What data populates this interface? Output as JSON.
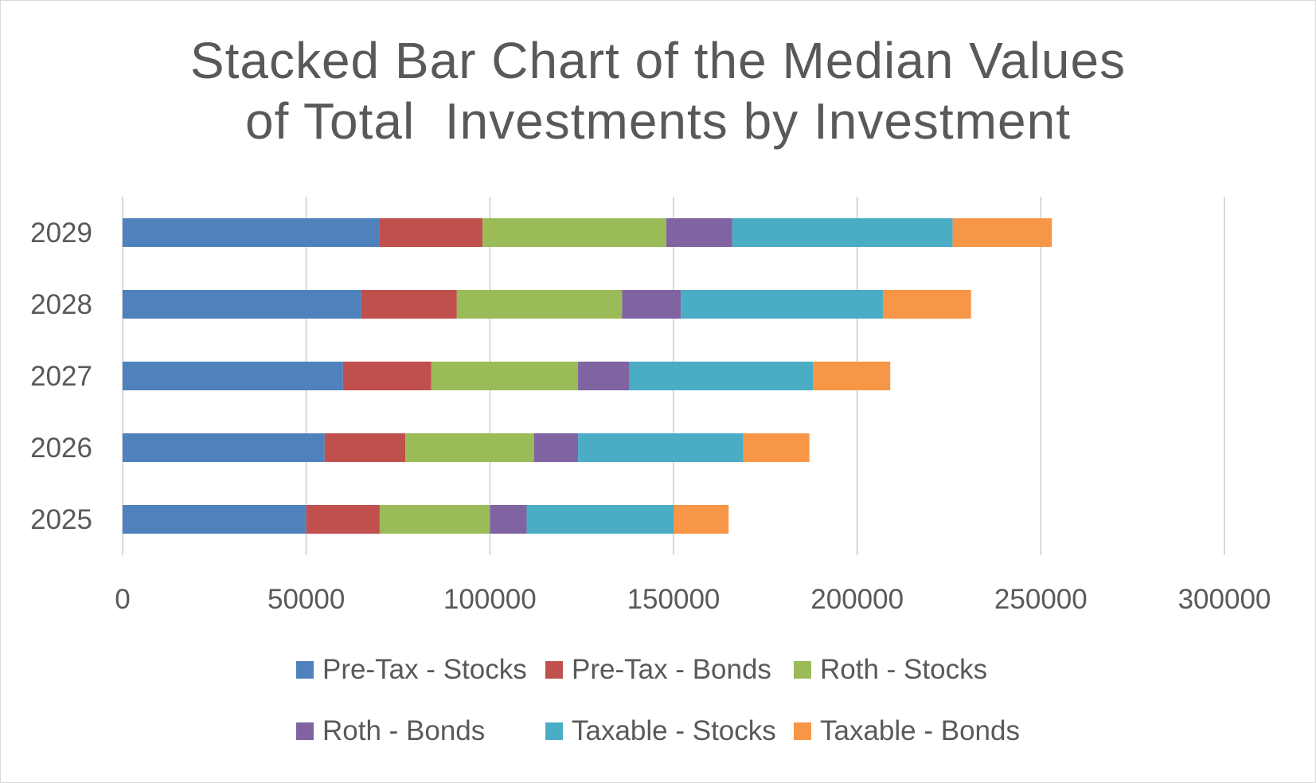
{
  "chart_data": {
    "type": "bar",
    "orientation": "horizontal",
    "stacked": true,
    "title_lines": [
      "Stacked Bar Chart of the Median Values",
      "of Total  Investments by Investment"
    ],
    "categories": [
      "2025",
      "2026",
      "2027",
      "2028",
      "2029"
    ],
    "series": [
      {
        "name": "Pre-Tax - Stocks",
        "color": "#4f81bd",
        "values": [
          50000,
          55000,
          60000,
          65000,
          70000
        ]
      },
      {
        "name": "Pre-Tax - Bonds",
        "color": "#c0504d",
        "values": [
          20000,
          22000,
          24000,
          26000,
          28000
        ]
      },
      {
        "name": "Roth - Stocks",
        "color": "#9bbb59",
        "values": [
          30000,
          35000,
          40000,
          45000,
          50000
        ]
      },
      {
        "name": "Roth - Bonds",
        "color": "#8064a2",
        "values": [
          10000,
          12000,
          14000,
          16000,
          18000
        ]
      },
      {
        "name": "Taxable - Stocks",
        "color": "#4bacc6",
        "values": [
          40000,
          45000,
          50000,
          55000,
          60000
        ]
      },
      {
        "name": "Taxable - Bonds",
        "color": "#f79646",
        "values": [
          15000,
          18000,
          21000,
          24000,
          27000
        ]
      }
    ],
    "xlim": [
      0,
      300000
    ],
    "xticks": [
      "0",
      "50000",
      "100000",
      "150000",
      "200000",
      "250000",
      "300000"
    ],
    "xtick_values": [
      0,
      50000,
      100000,
      150000,
      200000,
      250000,
      300000
    ],
    "grid": "vertical",
    "legend": "bottom"
  }
}
